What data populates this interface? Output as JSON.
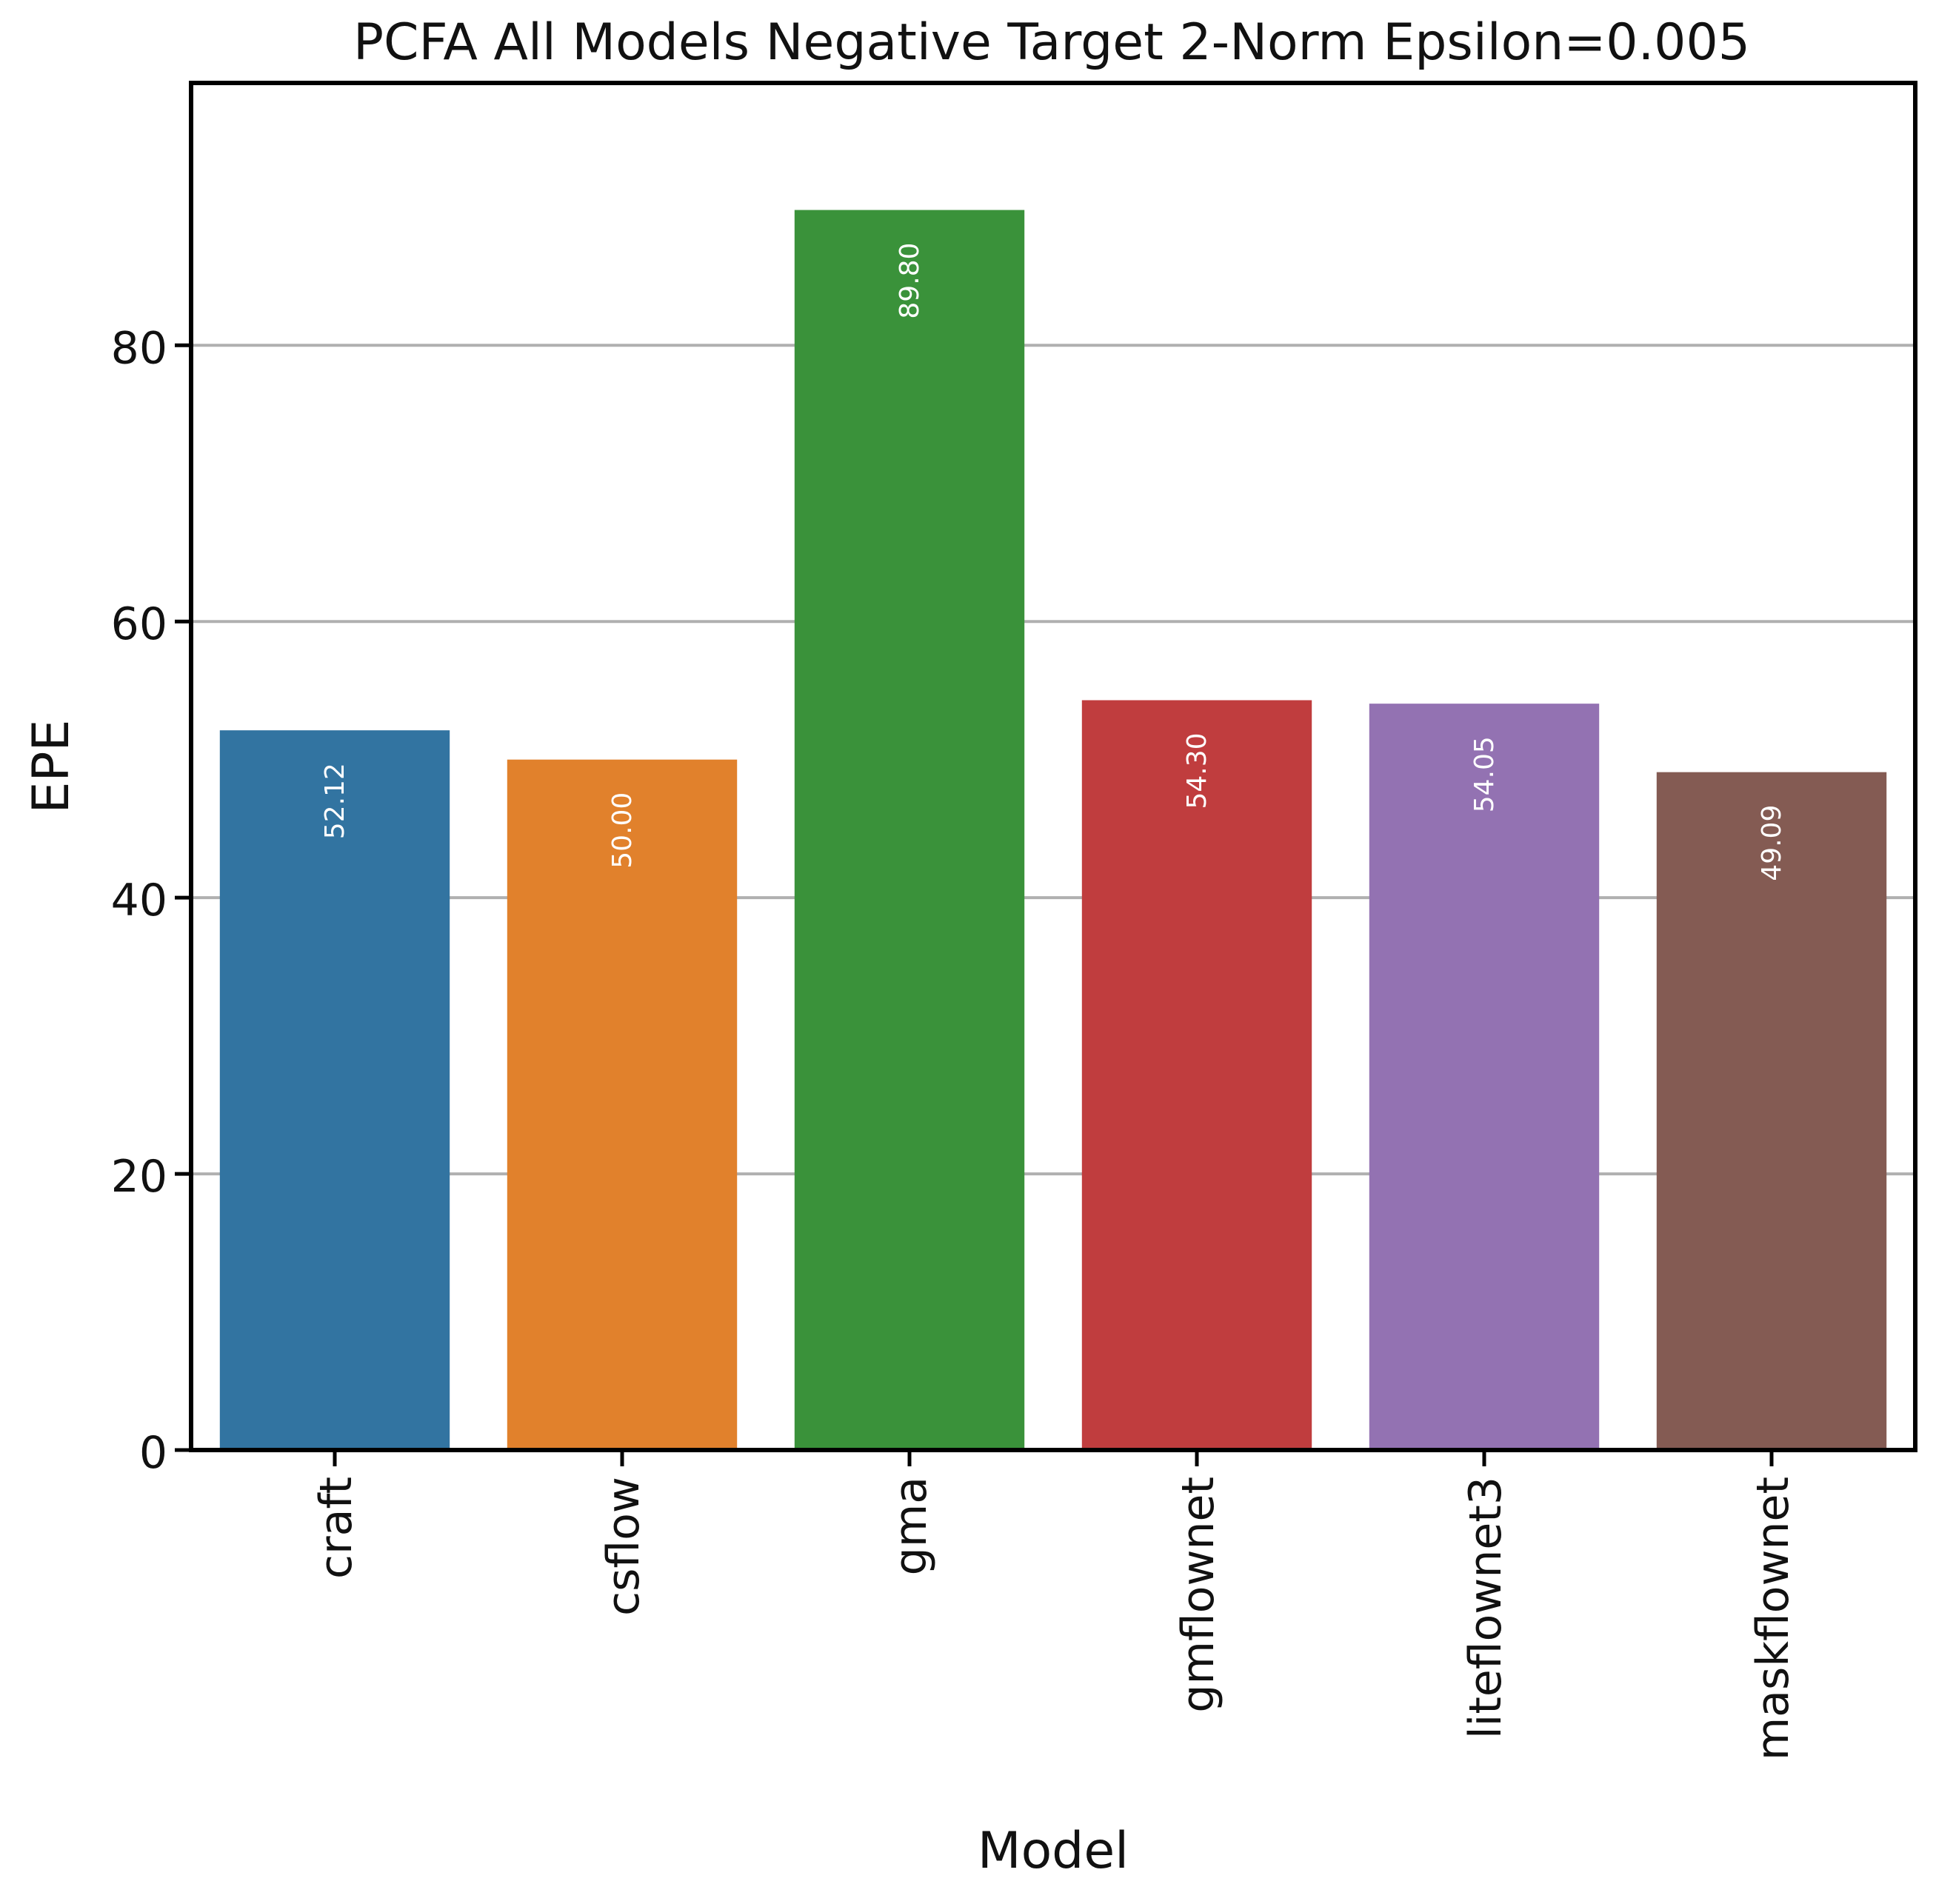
{
  "chart_data": {
    "type": "bar",
    "title": "PCFA All Models Negative Target 2-Norm Epsilon=0.005",
    "xlabel": "Model",
    "ylabel": "EPE",
    "categories": [
      "craft",
      "csflow",
      "gma",
      "gmflownet",
      "liteflownet3",
      "maskflownet"
    ],
    "values": [
      52.12,
      50.0,
      89.8,
      54.3,
      54.05,
      49.09
    ],
    "data_labels": [
      "52.12",
      "50.00",
      "89.80",
      "54.30",
      "54.05",
      "49.09"
    ],
    "colors": [
      "#3274a1",
      "#e1812c",
      "#3a923a",
      "#c03d3e",
      "#9372b2",
      "#845b53"
    ],
    "ylim": [
      0,
      99
    ],
    "yticks": [
      0,
      20,
      40,
      60,
      80
    ],
    "ytick_labels": [
      "0",
      "20",
      "40",
      "60",
      "80"
    ],
    "grid": "horizontal",
    "legend": "none",
    "xtick_rotation": "vertical"
  }
}
